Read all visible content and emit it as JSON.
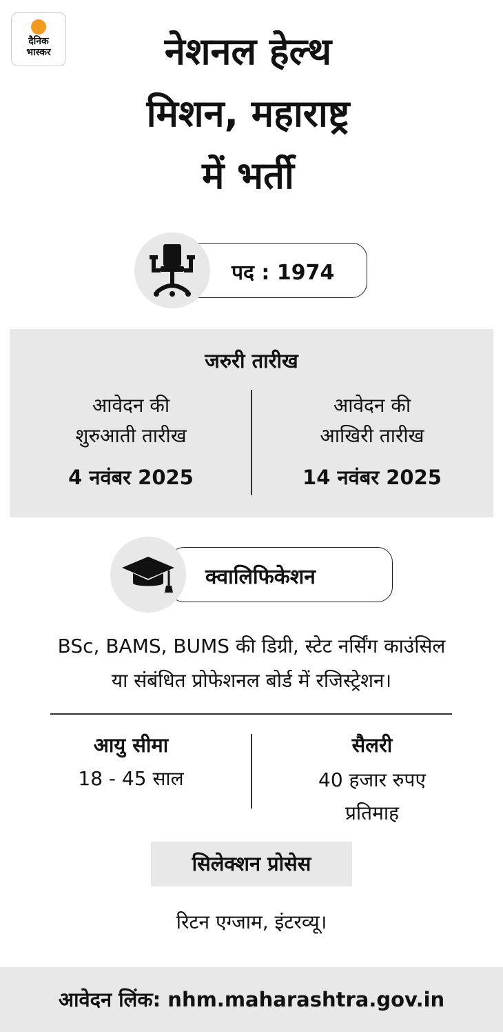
{
  "logo": {
    "line1": "दैनिक",
    "line2": "भास्कर",
    "dot_color": "#f39a1e"
  },
  "title": {
    "lines": [
      "नेशनल हेल्थ",
      "मिशन, महाराष्ट्र",
      "में भर्ती"
    ]
  },
  "posts": {
    "icon": "office-chair-icon",
    "label": "पद : 1974"
  },
  "dates": {
    "heading": "जरुरी तारीख",
    "start": {
      "label_lines": [
        "आवेदन की",
        "शुरुआती तारीख"
      ],
      "value": "4 नवंबर 2025"
    },
    "end": {
      "label_lines": [
        "आवेदन की",
        "आखिरी तारीख"
      ],
      "value": "14 नवंबर 2025"
    }
  },
  "qualification": {
    "icon": "graduation-cap-icon",
    "label": "क्वालिफिकेशन",
    "text_lines": [
      "BSc, BAMS, BUMS की डिग्री, स्टेट नर्सिंग काउंसिल",
      "या संबंधित प्रोफेशनल बोर्ड में रजिस्ट्रेशन।"
    ]
  },
  "age": {
    "heading": "आयु सीमा",
    "value": "18 - 45 साल"
  },
  "salary": {
    "heading": "सैलरी",
    "value_lines": [
      "40 हजार रुपए",
      "प्रतिमाह"
    ]
  },
  "selection": {
    "heading": "सिलेक्शन प्रोसेस",
    "text": "रिटन एग्जाम, इंटरव्यू।"
  },
  "footer": {
    "text": "आवेदन लिंक: nhm.maharashtra.gov.in"
  },
  "colors": {
    "panel": "#e8e8e8",
    "text": "#111111"
  }
}
